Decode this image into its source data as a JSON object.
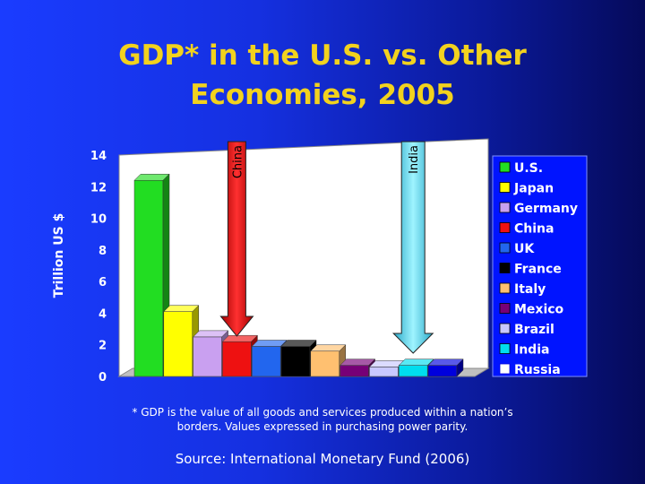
{
  "title_lines": [
    "GDP* in the U.S. vs. Other",
    "Economies, 2005"
  ],
  "footnote_lines": [
    "* GDP is the value of all goods and services produced within a nation’s",
    "borders.  Values expressed in purchasing power parity."
  ],
  "source": "Source: International Monetary Fund (2006)",
  "chart_data": {
    "type": "bar",
    "title": "GDP* in the U.S. vs. Other Economies, 2005",
    "xlabel": "",
    "ylabel": "Trillion US $",
    "ylim": [
      0,
      14
    ],
    "yticks": [
      0,
      2,
      4,
      6,
      8,
      10,
      12,
      14
    ],
    "grid": false,
    "legend_position": "right",
    "series": [
      {
        "name": "U.S.",
        "value": 12.4,
        "color": "#22dd22"
      },
      {
        "name": "Japan",
        "value": 4.1,
        "color": "#ffff00"
      },
      {
        "name": "Germany",
        "value": 2.5,
        "color": "#c9a0f0"
      },
      {
        "name": "China",
        "value": 2.2,
        "color": "#ee1111"
      },
      {
        "name": "UK",
        "value": 1.9,
        "color": "#2266ee"
      },
      {
        "name": "France",
        "value": 1.9,
        "color": "#000000"
      },
      {
        "name": "Italy",
        "value": 1.6,
        "color": "#ffc070"
      },
      {
        "name": "Mexico",
        "value": 0.7,
        "color": "#770077"
      },
      {
        "name": "Brazil",
        "value": 0.6,
        "color": "#c8c8ff"
      },
      {
        "name": "India",
        "value": 0.7,
        "color": "#00ddee"
      },
      {
        "name": "Russia",
        "value": 0.7,
        "color": "#0000dd"
      }
    ],
    "annotations": [
      {
        "label": "China",
        "points_to": "China"
      },
      {
        "label": "India",
        "points_to": "India"
      }
    ]
  }
}
